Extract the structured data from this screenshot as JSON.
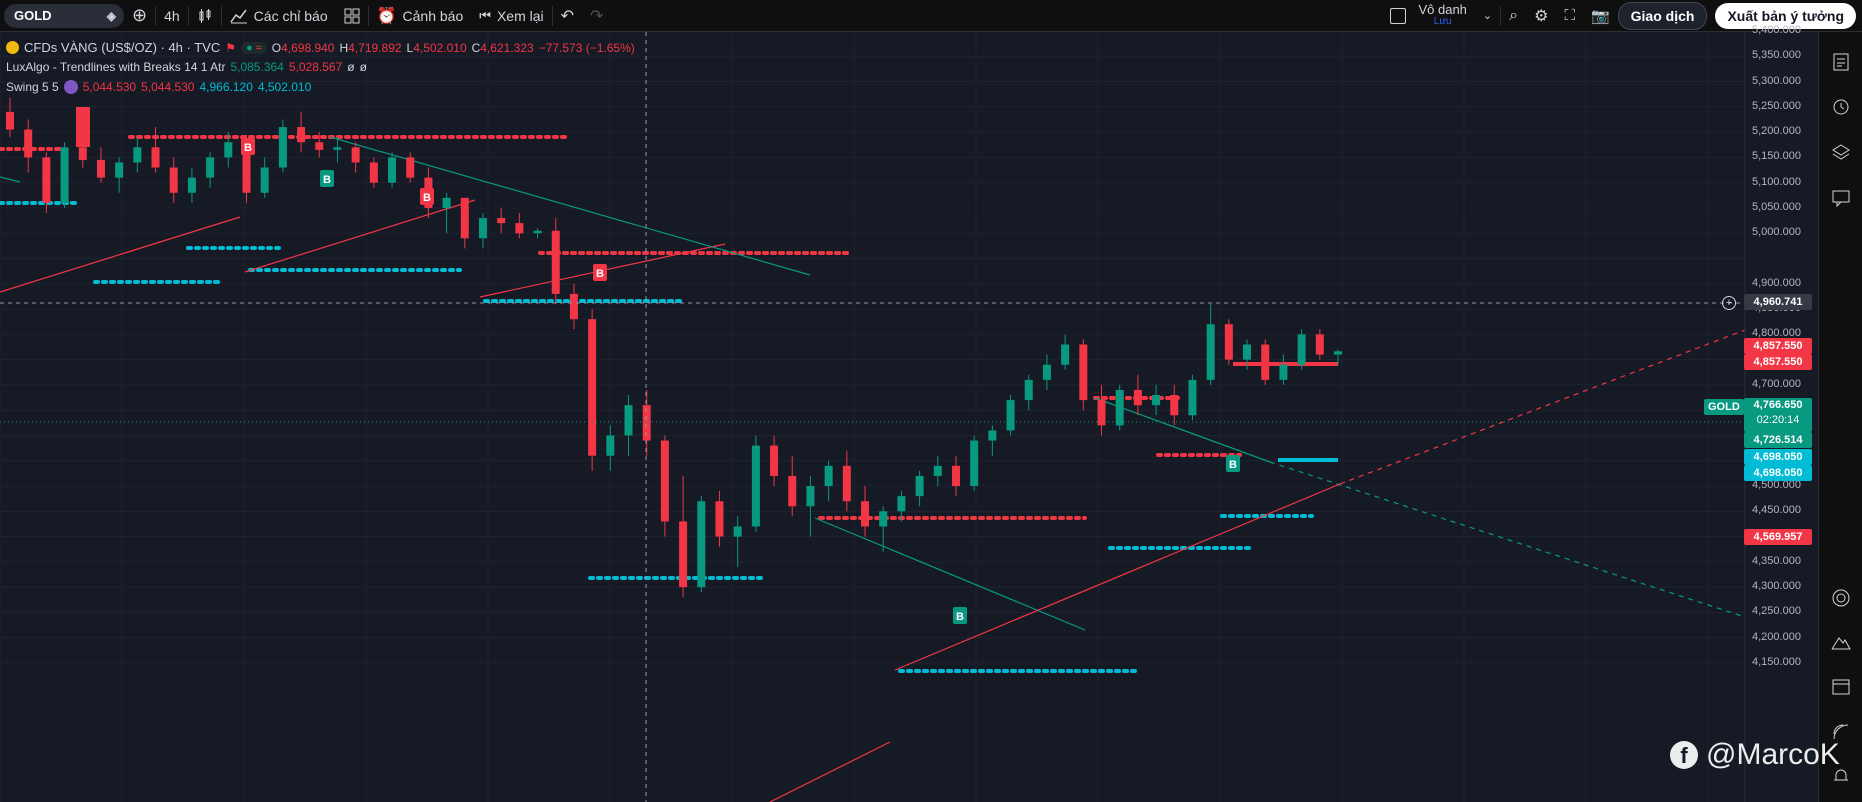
{
  "toolbar": {
    "symbol": "GOLD",
    "interval": "4h",
    "indicators_label": "Các chỉ báo",
    "alerts_label": "Cảnh báo",
    "replay_label": "Xem lại",
    "user_name": "Vô danh",
    "user_status": "Lưu",
    "trade_label": "Giao dịch",
    "publish_label": "Xuất bản ý tưởng"
  },
  "legend": {
    "title": "CFDs VÀNG (US$/OZ) · 4h · TVC",
    "open_label": "O",
    "open": "4,698.940",
    "high_label": "H",
    "high": "4,719.892",
    "low_label": "L",
    "low": "4,502.010",
    "close_label": "C",
    "close": "4,621.323",
    "change": "−77.573 (−1.65%)",
    "ind1_name": "LuxAlgo - Trendlines with Breaks 14 1 Atr",
    "ind1_v1": "5,085.364",
    "ind1_v2": "5,028.567",
    "ind1_v3": "ø",
    "ind1_v4": "ø",
    "ind2_name": "Swing 5 5",
    "ind2_v1": "5,044.530",
    "ind2_v2": "5,044.530",
    "ind2_v3": "4,966.120",
    "ind2_v4": "4,502.010"
  },
  "price_axis": [
    "5,400.000",
    "5,350.000",
    "5,300.000",
    "5,250.000",
    "5,200.000",
    "5,150.000",
    "5,100.000",
    "5,050.000",
    "5,000.000",
    "4,900.000",
    "4,850.000",
    "4,800.000",
    "4,750.000",
    "4,700.000",
    "4,600.000",
    "4,550.000",
    "4,500.000",
    "4,450.000",
    "4,400.000",
    "4,350.000",
    "4,300.000",
    "4,250.000",
    "4,200.000",
    "4,150.000"
  ],
  "price_tags": {
    "crosshair": "4,960.741",
    "red1": "4,857.550",
    "red2": "4,857.550",
    "symbol_tag": "GOLD",
    "last": "4,766.650",
    "countdown": "02:20:14",
    "green": "4,726.514",
    "blue1": "4,698.050",
    "blue2": "4,698.050",
    "red3": "4,569.957"
  },
  "watermark": "@MarcoK",
  "colors": {
    "up": "#089981",
    "down": "#f23645",
    "support": "#00bcd4",
    "resist": "#f23645",
    "bg": "#161a25"
  },
  "chart_data": {
    "type": "candlestick",
    "symbol": "GOLD",
    "interval": "4h",
    "ylim": [
      4130,
      5420
    ],
    "candles": [
      [
        5240,
        5268,
        5190,
        5205
      ],
      [
        5205,
        5225,
        5120,
        5150
      ],
      [
        5150,
        5160,
        5040,
        5060
      ],
      [
        5060,
        5180,
        5050,
        5170
      ],
      [
        5170,
        5200,
        5130,
        5145
      ],
      [
        5145,
        5170,
        5100,
        5110
      ],
      [
        5110,
        5150,
        5080,
        5140
      ],
      [
        5140,
        5190,
        5120,
        5170
      ],
      [
        5170,
        5210,
        5120,
        5130
      ],
      [
        5130,
        5150,
        5060,
        5080
      ],
      [
        5080,
        5130,
        5060,
        5110
      ],
      [
        5110,
        5160,
        5090,
        5150
      ],
      [
        5150,
        5200,
        5130,
        5180
      ],
      [
        5180,
        5195,
        5060,
        5080
      ],
      [
        5080,
        5150,
        5070,
        5130
      ],
      [
        5130,
        5225,
        5120,
        5210
      ],
      [
        5210,
        5240,
        5160,
        5180
      ],
      [
        5180,
        5200,
        5150,
        5165
      ],
      [
        5165,
        5190,
        5140,
        5170
      ],
      [
        5170,
        5180,
        5120,
        5140
      ],
      [
        5140,
        5150,
        5090,
        5100
      ],
      [
        5100,
        5160,
        5090,
        5150
      ],
      [
        5150,
        5160,
        5100,
        5110
      ],
      [
        5110,
        5130,
        5030,
        5050
      ],
      [
        5050,
        5080,
        5000,
        5070
      ],
      [
        5070,
        5060,
        4970,
        4990
      ],
      [
        4990,
        5040,
        4970,
        5030
      ],
      [
        5030,
        5050,
        5000,
        5020
      ],
      [
        5020,
        5040,
        4990,
        5000
      ],
      [
        5000,
        5010,
        4990,
        5005
      ],
      [
        5005,
        5030,
        4860,
        4880
      ],
      [
        4880,
        4900,
        4810,
        4830
      ],
      [
        4830,
        4850,
        4530,
        4560
      ],
      [
        4560,
        4620,
        4530,
        4600
      ],
      [
        4600,
        4680,
        4560,
        4660
      ],
      [
        4660,
        4690,
        4560,
        4590
      ],
      [
        4590,
        4600,
        4400,
        4430
      ],
      [
        4430,
        4520,
        4280,
        4300
      ],
      [
        4300,
        4480,
        4290,
        4470
      ],
      [
        4470,
        4490,
        4380,
        4400
      ],
      [
        4400,
        4440,
        4340,
        4420
      ],
      [
        4420,
        4600,
        4410,
        4580
      ],
      [
        4580,
        4600,
        4500,
        4520
      ],
      [
        4520,
        4560,
        4440,
        4460
      ],
      [
        4460,
        4520,
        4400,
        4500
      ],
      [
        4500,
        4550,
        4470,
        4540
      ],
      [
        4540,
        4570,
        4450,
        4470
      ],
      [
        4470,
        4500,
        4400,
        4420
      ],
      [
        4420,
        4460,
        4370,
        4450
      ],
      [
        4450,
        4490,
        4430,
        4480
      ],
      [
        4480,
        4530,
        4460,
        4520
      ],
      [
        4520,
        4560,
        4500,
        4540
      ],
      [
        4540,
        4560,
        4480,
        4500
      ],
      [
        4500,
        4600,
        4490,
        4590
      ],
      [
        4590,
        4620,
        4560,
        4610
      ],
      [
        4610,
        4680,
        4600,
        4670
      ],
      [
        4670,
        4720,
        4650,
        4710
      ],
      [
        4710,
        4760,
        4690,
        4740
      ],
      [
        4740,
        4800,
        4730,
        4780
      ],
      [
        4780,
        4790,
        4650,
        4670
      ],
      [
        4670,
        4700,
        4600,
        4620
      ],
      [
        4620,
        4700,
        4610,
        4690
      ],
      [
        4690,
        4720,
        4640,
        4660
      ],
      [
        4660,
        4700,
        4640,
        4680
      ],
      [
        4680,
        4700,
        4620,
        4640
      ],
      [
        4640,
        4720,
        4630,
        4710
      ],
      [
        4710,
        4860,
        4700,
        4820
      ],
      [
        4820,
        4830,
        4740,
        4750
      ],
      [
        4750,
        4790,
        4730,
        4780
      ],
      [
        4780,
        4790,
        4700,
        4710
      ],
      [
        4710,
        4760,
        4700,
        4740
      ],
      [
        4740,
        4810,
        4730,
        4800
      ],
      [
        4800,
        4810,
        4750,
        4760
      ],
      [
        4760,
        4770,
        4740,
        4766.65
      ]
    ]
  }
}
